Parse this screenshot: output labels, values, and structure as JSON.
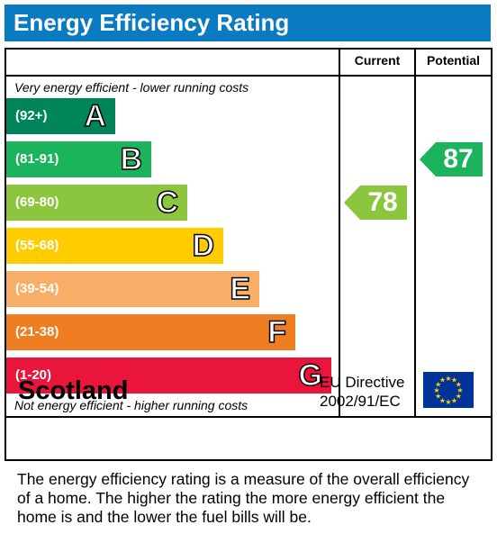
{
  "header": {
    "title": "Energy Efficiency Rating"
  },
  "columns": {
    "current": "Current",
    "potential": "Potential"
  },
  "scale": {
    "top_note": "Very energy efficient - lower running costs",
    "bottom_note": "Not energy efficient - higher running costs"
  },
  "chart_data": {
    "type": "bar",
    "title": "Energy Efficiency Rating",
    "bands": [
      {
        "letter": "A",
        "range": "(92+)",
        "color": "#00855a"
      },
      {
        "letter": "B",
        "range": "(81-91)",
        "color": "#1bb35c"
      },
      {
        "letter": "C",
        "range": "(69-80)",
        "color": "#8cc63f"
      },
      {
        "letter": "D",
        "range": "(55-68)",
        "color": "#ffcc00"
      },
      {
        "letter": "E",
        "range": "(39-54)",
        "color": "#f7ae66"
      },
      {
        "letter": "F",
        "range": "(21-38)",
        "color": "#ef7d21"
      },
      {
        "letter": "G",
        "range": "(1-20)",
        "color": "#e9153b"
      }
    ],
    "current": {
      "value": 78,
      "band": "C",
      "color": "#8cc63f"
    },
    "potential": {
      "value": 87,
      "band": "B",
      "color": "#1bb35c"
    }
  },
  "footer": {
    "country": "Scotland",
    "directive_line1": "EU Directive",
    "directive_line2": "2002/91/EC",
    "text": "The energy efficiency rating is a measure of the overall efficiency of a home.  The higher the rating the more energy efficient the home is and the lower the fuel bills will be."
  }
}
